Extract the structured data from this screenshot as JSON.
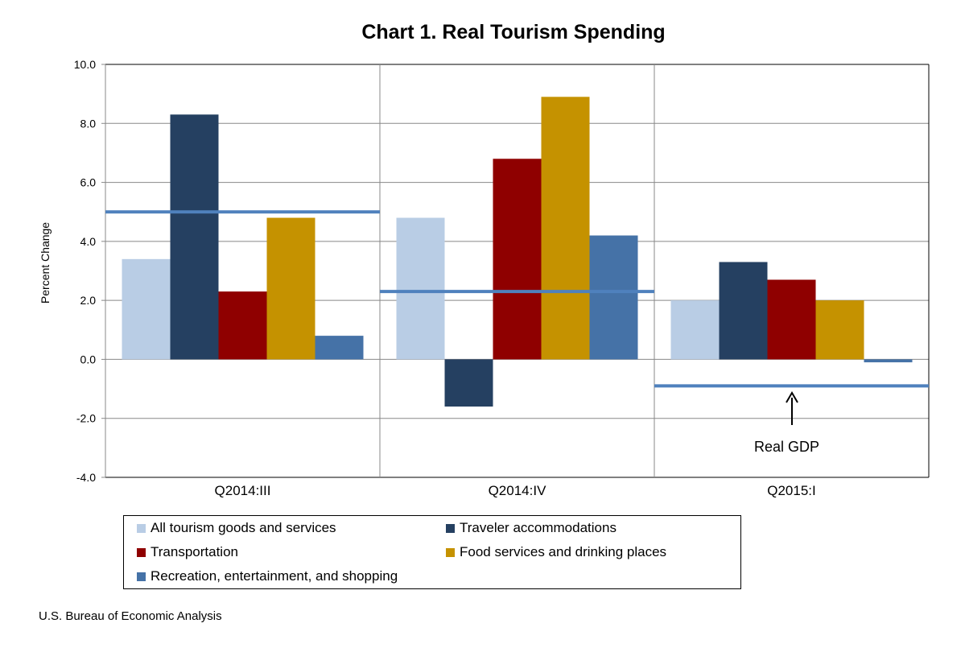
{
  "chart_data": {
    "type": "bar",
    "title": "Chart 1. Real Tourism Spending",
    "ylabel": "Percent Change",
    "xlabel": "",
    "ylim": [
      -4,
      10
    ],
    "yticks": [
      "10.0",
      "8.0",
      "6.0",
      "4.0",
      "2.0",
      "0.0",
      "-2.0",
      "-4.0"
    ],
    "ytick_values": [
      10,
      8,
      6,
      4,
      2,
      0,
      -2,
      -4
    ],
    "grid": true,
    "categories": [
      "Q2014:III",
      "Q2014:IV",
      "Q2015:I"
    ],
    "series": [
      {
        "name": "All tourism goods and services",
        "color": "#b9cde5",
        "values": [
          3.4,
          4.8,
          2.0
        ]
      },
      {
        "name": "Traveler accommodations",
        "color": "#254061",
        "values": [
          8.3,
          -1.6,
          3.3
        ]
      },
      {
        "name": "Transportation",
        "color": "#8f0000",
        "values": [
          2.3,
          6.8,
          2.7
        ]
      },
      {
        "name": "Food services and drinking places",
        "color": "#c59200",
        "values": [
          4.8,
          8.9,
          2.0
        ]
      },
      {
        "name": "Recreation, entertainment, and shopping",
        "color": "#4572a7",
        "values": [
          0.8,
          4.2,
          -0.1
        ]
      }
    ],
    "reference_line": {
      "name": "Real GDP",
      "color": "#4f81bd",
      "values": [
        5.0,
        2.3,
        -0.9
      ]
    },
    "annotation": "Real GDP",
    "legend_position": "bottom"
  },
  "source": "U.S. Bureau of Economic Analysis"
}
